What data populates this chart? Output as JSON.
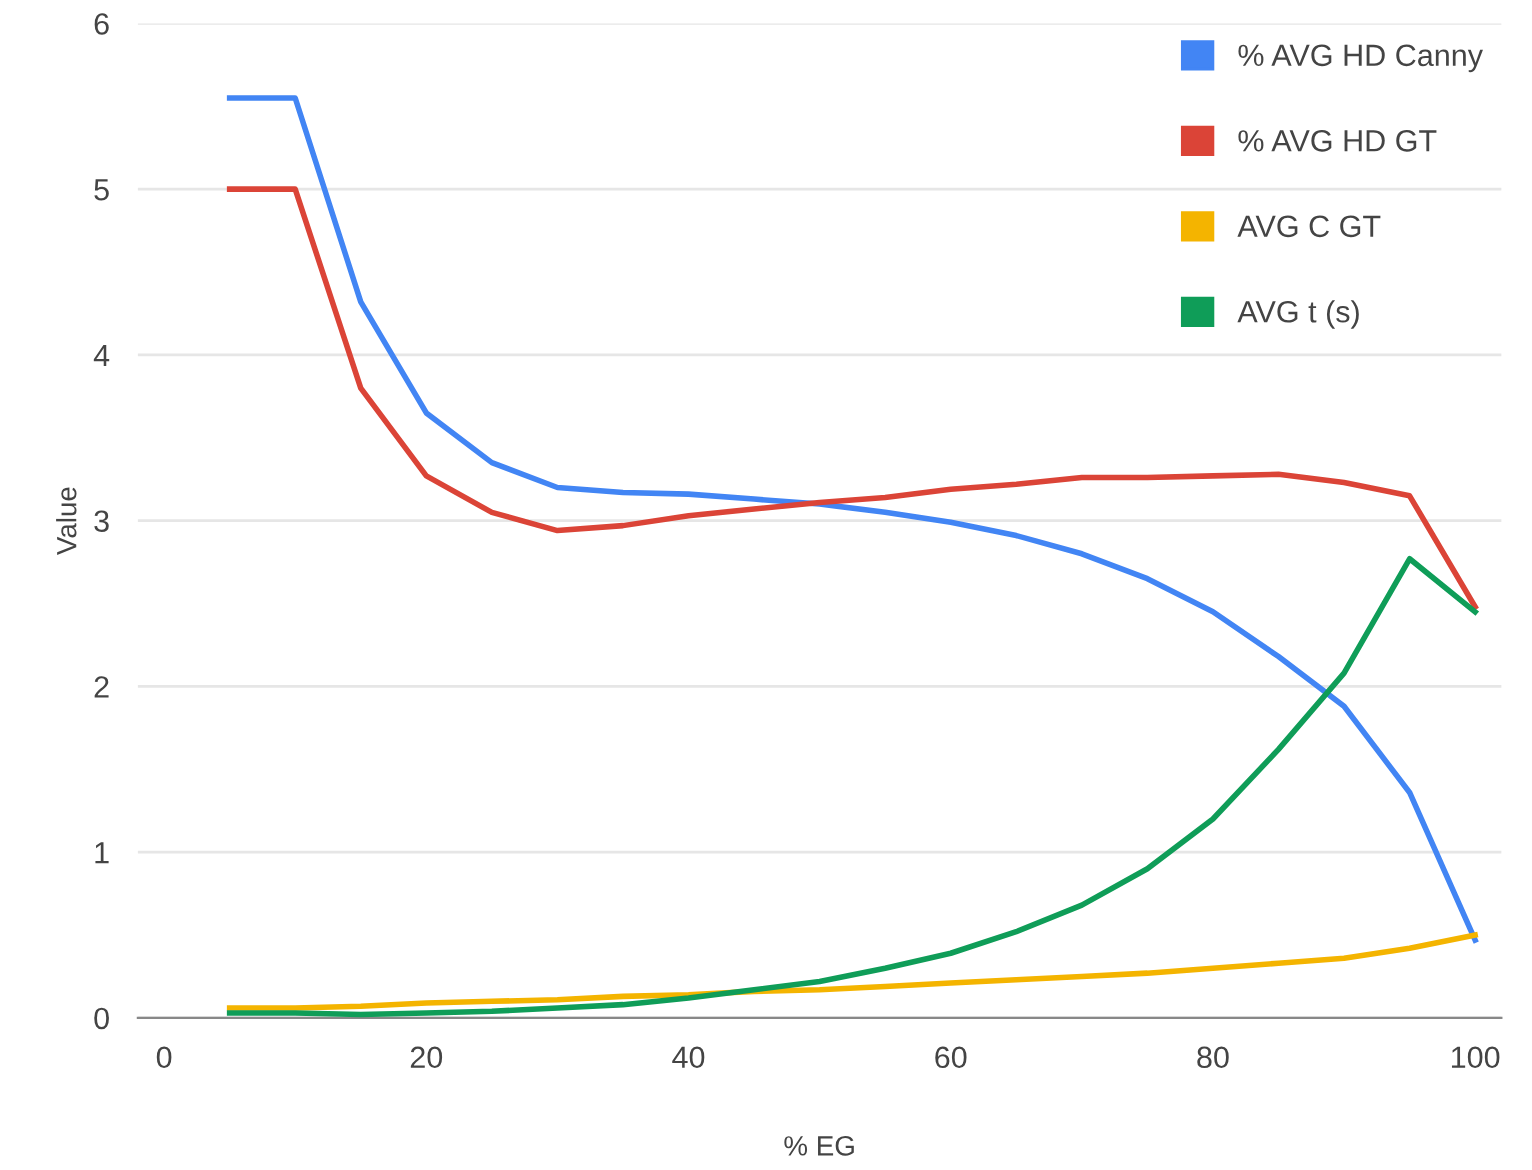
{
  "chart_data": {
    "type": "line",
    "xlabel": "% EG",
    "ylabel": "Value",
    "x": [
      5,
      10,
      15,
      20,
      25,
      30,
      35,
      40,
      45,
      50,
      55,
      60,
      65,
      70,
      75,
      80,
      85,
      90,
      95,
      100
    ],
    "series": [
      {
        "name": "% AVG HD Canny",
        "color": "#4285f4",
        "values": [
          5.55,
          5.55,
          4.32,
          3.65,
          3.35,
          3.2,
          3.17,
          3.16,
          3.13,
          3.1,
          3.05,
          2.99,
          2.91,
          2.8,
          2.65,
          2.45,
          2.18,
          1.88,
          1.36,
          0.47
        ]
      },
      {
        "name": "% AVG HD GT",
        "color": "#db4437",
        "values": [
          5,
          5,
          3.8,
          3.27,
          3.05,
          2.94,
          2.97,
          3.03,
          3.07,
          3.11,
          3.14,
          3.19,
          3.22,
          3.26,
          3.26,
          3.27,
          3.28,
          3.23,
          3.15,
          2.48
        ]
      },
      {
        "name": "AVG C GT",
        "color": "#f4b400",
        "values": [
          0.06,
          0.06,
          0.07,
          0.09,
          0.1,
          0.11,
          0.13,
          0.14,
          0.16,
          0.17,
          0.19,
          0.21,
          0.23,
          0.25,
          0.27,
          0.3,
          0.33,
          0.36,
          0.42,
          0.5
        ]
      },
      {
        "name": "AVG t (s)",
        "color": "#0f9d58",
        "values": [
          0.03,
          0.03,
          0.02,
          0.03,
          0.04,
          0.06,
          0.08,
          0.12,
          0.17,
          0.22,
          0.3,
          0.39,
          0.52,
          0.68,
          0.9,
          1.2,
          1.62,
          2.08,
          2.77,
          2.45
        ]
      }
    ],
    "xlim": [
      -2,
      102
    ],
    "xticks": [
      0,
      20,
      40,
      60,
      80,
      100
    ],
    "ylim": [
      0,
      6
    ],
    "yticks": [
      0,
      1,
      2,
      3,
      4,
      5,
      6
    ],
    "grid": "y",
    "legend": "top right",
    "marker": "none",
    "line_style": "solid"
  }
}
